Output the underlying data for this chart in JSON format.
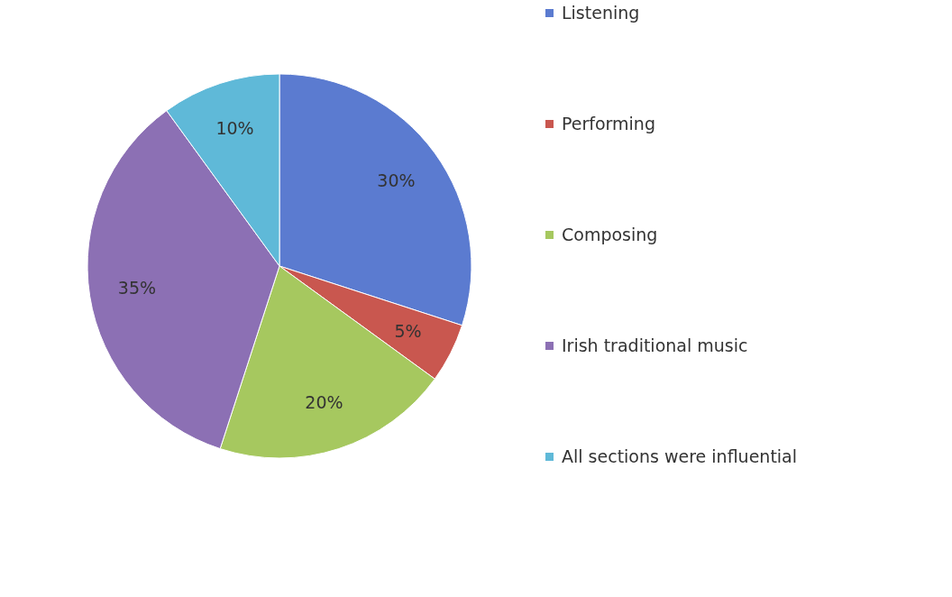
{
  "chart_data": {
    "type": "pie",
    "categories": [
      "Listening",
      "Performing",
      "Composing",
      "Irish traditional music",
      "All sections were influential"
    ],
    "values": [
      30,
      5,
      20,
      35,
      10
    ],
    "colors": [
      "#5b7bd0",
      "#c9574f",
      "#a6c85f",
      "#8c70b4",
      "#5fb9d8"
    ],
    "value_labels": [
      "30%",
      "5%",
      "20%",
      "35%",
      "10%"
    ],
    "legend": "right"
  }
}
